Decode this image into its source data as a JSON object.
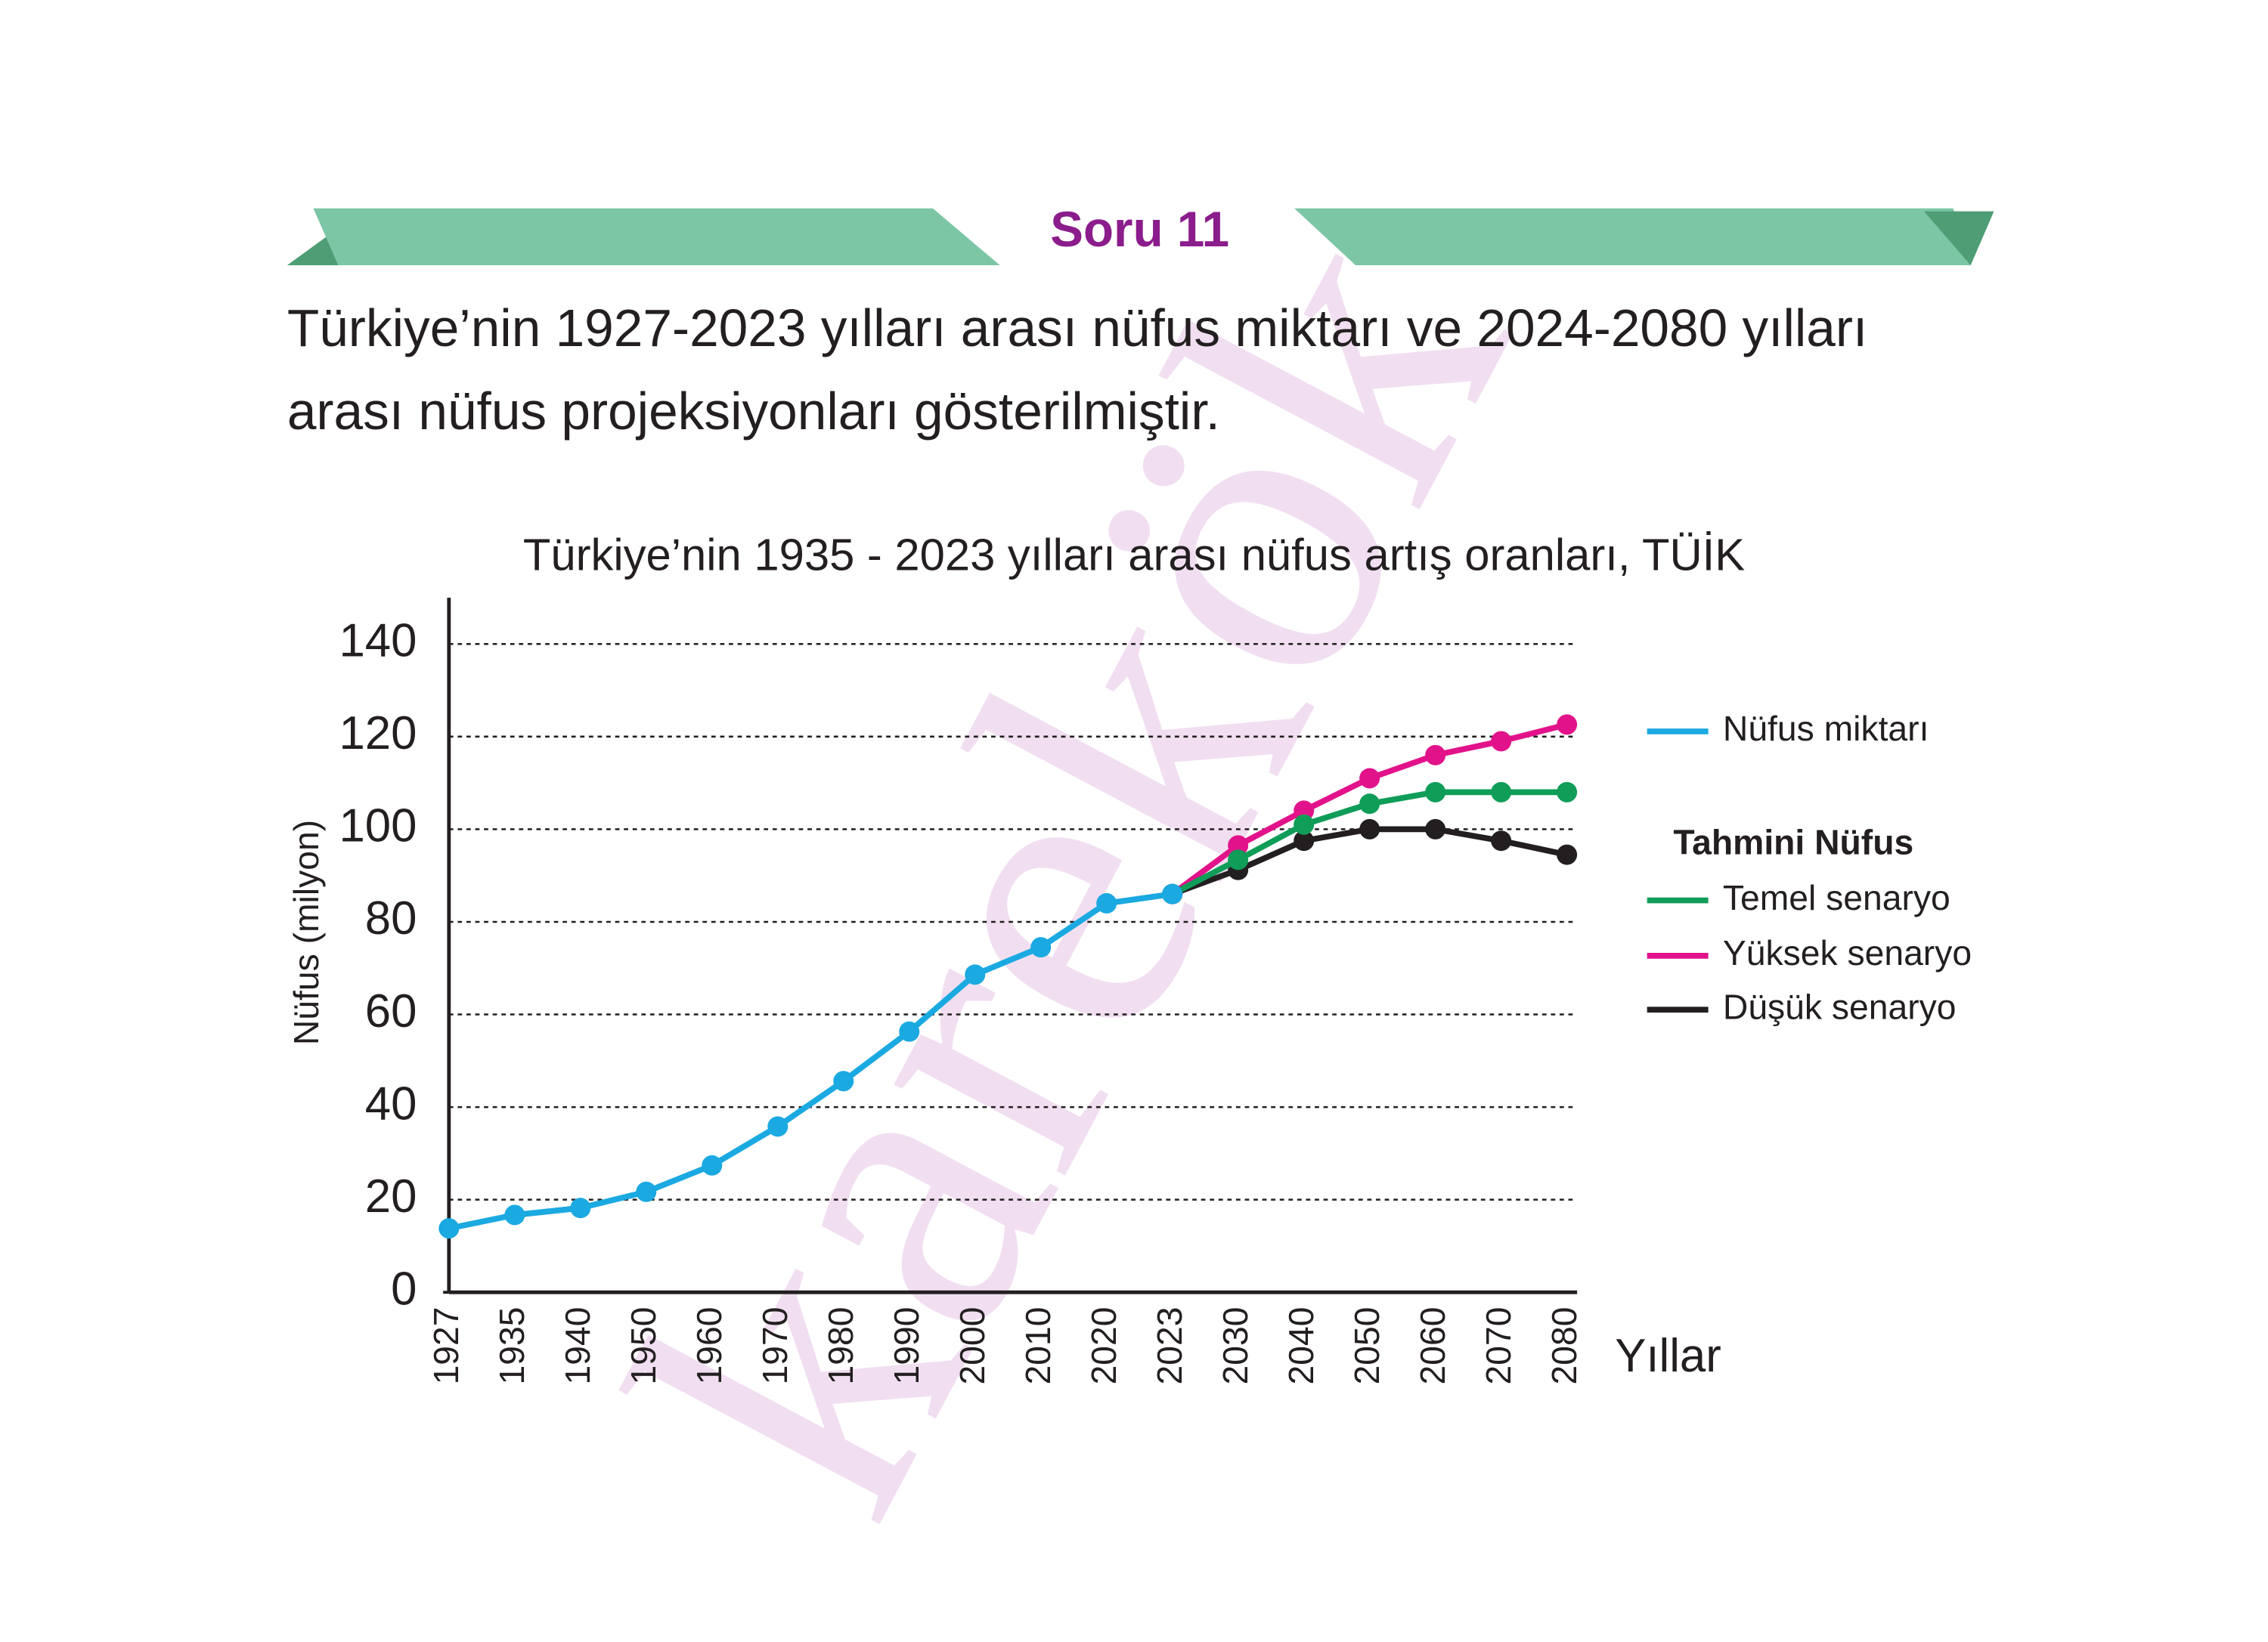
{
  "header": {
    "title": "Soru 11"
  },
  "question": {
    "lines": [
      "Türkiye’nin 1927-2023 yılları arası nüfus miktarı ve 2024-2080 yılları",
      "arası nüfus projeksiyonları gösterilmiştir."
    ]
  },
  "watermark": "karekök",
  "chart_data": {
    "type": "line",
    "title": "Türkiye’nin 1935 - 2023 yılları arası nüfus artış oranları, TÜİK",
    "x_label": "Yıllar",
    "y_label": "Nüfus (milyon)",
    "legend_group_title": "Tahmini Nüfus",
    "categories": [
      "1927",
      "1935",
      "1940",
      "1950",
      "1960",
      "1970",
      "1980",
      "1990",
      "2000",
      "2010",
      "2020",
      "2023",
      "2030",
      "2040",
      "2050",
      "2060",
      "2070",
      "2080"
    ],
    "series": [
      {
        "name": "Nüfus miktarı",
        "color": "#1ba9e1",
        "values": [
          13.8,
          16.7,
          18.2,
          21.7,
          27.4,
          35.8,
          45.6,
          56.3,
          68.6,
          74.5,
          84,
          86,
          null,
          null,
          null,
          null,
          null,
          null
        ]
      },
      {
        "name": "Temel senaryo",
        "color": "#0f9d58",
        "values": [
          null,
          null,
          null,
          null,
          null,
          null,
          null,
          null,
          null,
          null,
          null,
          86,
          93.4,
          101,
          105.5,
          108,
          108,
          108
        ]
      },
      {
        "name": "Yüksek senaryo",
        "color": "#e2138a",
        "values": [
          null,
          null,
          null,
          null,
          null,
          null,
          null,
          null,
          null,
          null,
          null,
          86,
          96.5,
          104,
          111,
          116,
          119,
          122.6
        ]
      },
      {
        "name": "Düşük senaryo",
        "color": "#231f20",
        "values": [
          null,
          null,
          null,
          null,
          null,
          null,
          null,
          null,
          null,
          null,
          null,
          86,
          91.2,
          97.5,
          100,
          100,
          97.5,
          94.5
        ]
      }
    ],
    "ylim": [
      0,
      150
    ],
    "yticks": [
      0,
      20,
      40,
      60,
      80,
      100,
      120,
      140
    ],
    "grid": true
  }
}
